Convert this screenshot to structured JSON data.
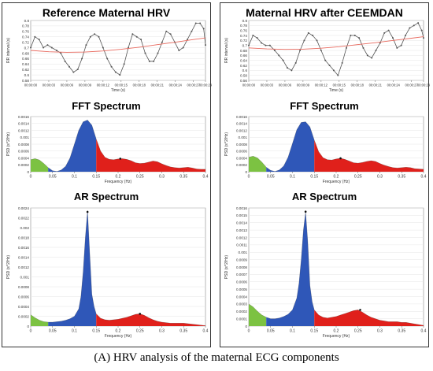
{
  "caption": "(A) HRV analysis of the maternal ECG components",
  "panels": [
    {
      "title": "Reference Maternal HRV",
      "fft_title": "FFT Spectrum",
      "ar_title": "AR Spectrum"
    },
    {
      "title": "Maternal HRV after CEEMDAN",
      "fft_title": "FFT Spectrum",
      "ar_title": "AR Spectrum"
    }
  ],
  "colors": {
    "vlf": "#7cc242",
    "lf": "#2f57b8",
    "hf": "#e0201b",
    "series": "#555555",
    "trend": "#e86a5f"
  },
  "chart_data": [
    {
      "type": "line",
      "panel": 0,
      "ylabel": "RR interval (s)",
      "xlabel": "Time (s)",
      "ylim": [
        0.58,
        0.8
      ],
      "xlim": [
        0,
        29
      ],
      "yticks": [
        "0.58",
        "0.6",
        "0.62",
        "0.64",
        "0.66",
        "0.68",
        "0.7",
        "0.72",
        "0.74",
        "0.76",
        "0.78",
        "0.8"
      ],
      "xticks": [
        "00:00:00",
        "00:00:03",
        "00:00:06",
        "00:00:09",
        "00:00:12",
        "00:00:15",
        "00:00:18",
        "00:00:21",
        "00:00:24",
        "00:00:27",
        "00:00:29"
      ],
      "xtick_pos": [
        0,
        3,
        6,
        9,
        12,
        15,
        18,
        21,
        24,
        27,
        29
      ],
      "series": [
        {
          "values": [
            [
              0,
              0.7
            ],
            [
              0.7,
              0.74
            ],
            [
              1.4,
              0.73
            ],
            [
              2.1,
              0.7
            ],
            [
              2.8,
              0.71
            ],
            [
              3.5,
              0.7
            ],
            [
              4.3,
              0.69
            ],
            [
              5,
              0.68
            ],
            [
              5.7,
              0.65
            ],
            [
              6.4,
              0.63
            ],
            [
              7.1,
              0.61
            ],
            [
              7.8,
              0.62
            ],
            [
              8.5,
              0.66
            ],
            [
              9.2,
              0.71
            ],
            [
              9.9,
              0.74
            ],
            [
              10.6,
              0.75
            ],
            [
              11.3,
              0.74
            ],
            [
              12,
              0.7
            ],
            [
              12.7,
              0.66
            ],
            [
              13.4,
              0.63
            ],
            [
              14.1,
              0.61
            ],
            [
              14.8,
              0.6
            ],
            [
              15.5,
              0.64
            ],
            [
              16.2,
              0.7
            ],
            [
              16.9,
              0.75
            ],
            [
              17.6,
              0.74
            ],
            [
              18.3,
              0.73
            ],
            [
              19,
              0.68
            ],
            [
              19.7,
              0.65
            ],
            [
              20.4,
              0.65
            ],
            [
              21.1,
              0.68
            ],
            [
              21.8,
              0.72
            ],
            [
              22.5,
              0.76
            ],
            [
              23.2,
              0.75
            ],
            [
              23.9,
              0.72
            ],
            [
              24.6,
              0.69
            ],
            [
              25.3,
              0.7
            ],
            [
              26,
              0.73
            ],
            [
              26.7,
              0.76
            ],
            [
              27.4,
              0.79
            ],
            [
              28.1,
              0.79
            ],
            [
              28.7,
              0.77
            ],
            [
              29,
              0.71
            ]
          ]
        }
      ],
      "trend": [
        [
          0,
          0.69
        ],
        [
          3,
          0.685
        ],
        [
          6,
          0.683
        ],
        [
          9,
          0.684
        ],
        [
          12,
          0.688
        ],
        [
          15,
          0.694
        ],
        [
          18,
          0.702
        ],
        [
          21,
          0.711
        ],
        [
          24,
          0.72
        ],
        [
          27,
          0.73
        ],
        [
          29,
          0.736
        ]
      ]
    },
    {
      "type": "area",
      "panel": 0,
      "title": "FFT Spectrum",
      "xlabel": "Frequency (Hz)",
      "ylabel": "PSD (s^2/Hz)",
      "xlim": [
        0,
        0.4
      ],
      "ylim": [
        0,
        0.0016
      ],
      "yticks": [
        "0",
        "0.0002",
        "0.0004",
        "0.0006",
        "0.0008",
        "0.001",
        "0.0012",
        "0.0014",
        "0.0016"
      ],
      "xticks": [
        "0",
        "0.05",
        "0.1",
        "0.15",
        "0.2",
        "0.25",
        "0.3",
        "0.35",
        "0.4"
      ],
      "bands": {
        "vlf": [
          0,
          0.04
        ],
        "lf": [
          0.04,
          0.15
        ],
        "hf": [
          0.15,
          0.4
        ]
      },
      "x": [
        0,
        0.01,
        0.02,
        0.03,
        0.04,
        0.05,
        0.06,
        0.07,
        0.08,
        0.09,
        0.1,
        0.11,
        0.12,
        0.13,
        0.14,
        0.15,
        0.16,
        0.17,
        0.18,
        0.19,
        0.2,
        0.21,
        0.22,
        0.23,
        0.24,
        0.25,
        0.26,
        0.27,
        0.28,
        0.29,
        0.3,
        0.31,
        0.32,
        0.33,
        0.34,
        0.35,
        0.36,
        0.37,
        0.38,
        0.39,
        0.4
      ],
      "y": [
        0.00035,
        0.00038,
        0.00034,
        0.00024,
        0.00012,
        3e-05,
        1e-05,
        5e-05,
        0.00016,
        0.0004,
        0.0008,
        0.0012,
        0.00145,
        0.0015,
        0.00135,
        0.00095,
        0.0006,
        0.00042,
        0.00036,
        0.00035,
        0.00037,
        0.00038,
        0.00036,
        0.00032,
        0.00026,
        0.00024,
        0.00025,
        0.00028,
        0.00031,
        0.00029,
        0.00023,
        0.00018,
        0.00014,
        0.00012,
        0.00011,
        0.00012,
        0.00013,
        0.00011,
        8e-05,
        7e-05,
        7e-05
      ],
      "marker": [
        0.205,
        0.00038
      ]
    },
    {
      "type": "area",
      "panel": 0,
      "title": "AR Spectrum",
      "xlabel": "Frequency (Hz)",
      "ylabel": "PSD (s^2/Hz)",
      "xlim": [
        0,
        0.4
      ],
      "ylim": [
        0,
        0.0024
      ],
      "yticks": [
        "0",
        "0.0002",
        "0.0004",
        "0.0006",
        "0.0008",
        "0.001",
        "0.0012",
        "0.0014",
        "0.0016",
        "0.0018",
        "0.002",
        "0.0022",
        "0.0024"
      ],
      "xticks": [
        "0",
        "0.05",
        "0.1",
        "0.15",
        "0.2",
        "0.25",
        "0.3",
        "0.35",
        "0.4"
      ],
      "bands": {
        "vlf": [
          0,
          0.04
        ],
        "lf": [
          0.04,
          0.15
        ],
        "hf": [
          0.15,
          0.4
        ]
      },
      "x": [
        0,
        0.01,
        0.02,
        0.03,
        0.04,
        0.05,
        0.06,
        0.07,
        0.08,
        0.09,
        0.1,
        0.11,
        0.115,
        0.12,
        0.125,
        0.13,
        0.135,
        0.14,
        0.145,
        0.15,
        0.16,
        0.17,
        0.18,
        0.19,
        0.2,
        0.21,
        0.22,
        0.23,
        0.24,
        0.25,
        0.26,
        0.27,
        0.28,
        0.29,
        0.3,
        0.31,
        0.32,
        0.33,
        0.34,
        0.35,
        0.36,
        0.37,
        0.38,
        0.39,
        0.4
      ],
      "y": [
        0.00023,
        0.00017,
        0.00012,
        9e-05,
        8e-05,
        8e-05,
        9e-05,
        0.0001,
        0.00012,
        0.00015,
        0.0002,
        0.00035,
        0.0006,
        0.0011,
        0.0018,
        0.00235,
        0.0015,
        0.00065,
        0.0004,
        0.00025,
        0.00016,
        0.00013,
        0.00012,
        0.00013,
        0.00014,
        0.00016,
        0.00018,
        0.00021,
        0.00024,
        0.00025,
        0.00022,
        0.00017,
        0.00013,
        0.0001,
        8e-05,
        7e-05,
        6e-05,
        6e-05,
        6e-05,
        6e-05,
        5e-05,
        4e-05,
        3e-05,
        2e-05,
        1e-05
      ],
      "marker": [
        0.25,
        0.00025
      ],
      "peak_marker": [
        0.13,
        0.00232
      ]
    },
    {
      "type": "line",
      "panel": 1,
      "ylabel": "RR interval (s)",
      "xlabel": "Time (s)",
      "ylim": [
        0.56,
        0.8
      ],
      "xlim": [
        0,
        29
      ],
      "yticks": [
        "0.56",
        "0.58",
        "0.6",
        "0.62",
        "0.64",
        "0.66",
        "0.68",
        "0.7",
        "0.72",
        "0.74",
        "0.76",
        "0.78",
        "0.8"
      ],
      "xticks": [
        "00:00:00",
        "00:00:03",
        "00:00:06",
        "00:00:09",
        "00:00:12",
        "00:00:15",
        "00:00:18",
        "00:00:21",
        "00:00:24",
        "00:00:27",
        "00:00:29"
      ],
      "xtick_pos": [
        0,
        3,
        6,
        9,
        12,
        15,
        18,
        21,
        24,
        27,
        29
      ],
      "series": [
        {
          "values": [
            [
              0,
              0.7
            ],
            [
              0.7,
              0.74
            ],
            [
              1.4,
              0.73
            ],
            [
              2.1,
              0.71
            ],
            [
              2.8,
              0.7
            ],
            [
              3.5,
              0.7
            ],
            [
              4.3,
              0.68
            ],
            [
              5,
              0.66
            ],
            [
              5.7,
              0.64
            ],
            [
              6.4,
              0.61
            ],
            [
              7.1,
              0.6
            ],
            [
              7.8,
              0.63
            ],
            [
              8.5,
              0.68
            ],
            [
              9.2,
              0.72
            ],
            [
              9.9,
              0.75
            ],
            [
              10.6,
              0.74
            ],
            [
              11.3,
              0.72
            ],
            [
              12,
              0.68
            ],
            [
              12.7,
              0.64
            ],
            [
              13.4,
              0.62
            ],
            [
              14.1,
              0.6
            ],
            [
              14.8,
              0.58
            ],
            [
              15.5,
              0.63
            ],
            [
              16.2,
              0.69
            ],
            [
              16.9,
              0.74
            ],
            [
              17.6,
              0.74
            ],
            [
              18.3,
              0.73
            ],
            [
              19,
              0.69
            ],
            [
              19.7,
              0.66
            ],
            [
              20.4,
              0.65
            ],
            [
              21.1,
              0.68
            ],
            [
              21.8,
              0.71
            ],
            [
              22.5,
              0.75
            ],
            [
              23.2,
              0.76
            ],
            [
              23.9,
              0.73
            ],
            [
              24.6,
              0.69
            ],
            [
              25.3,
              0.7
            ],
            [
              26,
              0.74
            ],
            [
              26.7,
              0.77
            ],
            [
              27.4,
              0.78
            ],
            [
              28.1,
              0.79
            ],
            [
              28.7,
              0.76
            ],
            [
              29,
              0.73
            ]
          ]
        }
      ],
      "trend": [
        [
          0,
          0.69
        ],
        [
          3,
          0.686
        ],
        [
          6,
          0.684
        ],
        [
          9,
          0.685
        ],
        [
          12,
          0.689
        ],
        [
          15,
          0.695
        ],
        [
          18,
          0.703
        ],
        [
          21,
          0.711
        ],
        [
          24,
          0.72
        ],
        [
          27,
          0.729
        ],
        [
          29,
          0.735
        ]
      ]
    },
    {
      "type": "area",
      "panel": 1,
      "title": "FFT Spectrum",
      "xlabel": "Frequency (Hz)",
      "ylabel": "PSD (s^2/Hz)",
      "xlim": [
        0,
        0.4
      ],
      "ylim": [
        0,
        0.0016
      ],
      "yticks": [
        "0",
        "0.0002",
        "0.0004",
        "0.0006",
        "0.0008",
        "0.001",
        "0.0012",
        "0.0014",
        "0.0016"
      ],
      "xticks": [
        "0",
        "0.05",
        "0.1",
        "0.15",
        "0.2",
        "0.25",
        "0.3",
        "0.35",
        "0.4"
      ],
      "bands": {
        "vlf": [
          0,
          0.04
        ],
        "lf": [
          0.04,
          0.15
        ],
        "hf": [
          0.15,
          0.4
        ]
      },
      "x": [
        0,
        0.01,
        0.02,
        0.03,
        0.04,
        0.05,
        0.06,
        0.07,
        0.08,
        0.09,
        0.1,
        0.11,
        0.12,
        0.13,
        0.14,
        0.15,
        0.16,
        0.17,
        0.18,
        0.19,
        0.2,
        0.21,
        0.22,
        0.23,
        0.24,
        0.25,
        0.26,
        0.27,
        0.28,
        0.29,
        0.3,
        0.31,
        0.32,
        0.33,
        0.34,
        0.35,
        0.36,
        0.37,
        0.38,
        0.39,
        0.4
      ],
      "y": [
        0.00042,
        0.00045,
        0.0004,
        0.00028,
        0.00013,
        4e-05,
        1e-05,
        5e-05,
        0.00017,
        0.00042,
        0.00082,
        0.00122,
        0.00143,
        0.00145,
        0.0013,
        0.00092,
        0.00058,
        0.00041,
        0.00035,
        0.00034,
        0.00037,
        0.00039,
        0.00036,
        0.00031,
        0.00026,
        0.00025,
        0.00027,
        0.0003,
        0.00032,
        0.0003,
        0.00024,
        0.00019,
        0.00015,
        0.00012,
        0.00011,
        0.00012,
        0.00013,
        0.00012,
        9e-05,
        8e-05,
        7e-05
      ],
      "marker": [
        0.21,
        0.00039
      ]
    },
    {
      "type": "area",
      "panel": 1,
      "title": "AR Spectrum",
      "xlabel": "Frequency (Hz)",
      "ylabel": "PSD (s^2/Hz)",
      "xlim": [
        0,
        0.4
      ],
      "ylim": [
        0,
        0.0016
      ],
      "yticks": [
        "0",
        "0.0001",
        "0.0002",
        "0.0003",
        "0.0004",
        "0.0005",
        "0.0006",
        "0.0007",
        "0.0008",
        "0.0009",
        "0.001",
        "0.0011",
        "0.0012",
        "0.0013",
        "0.0014",
        "0.0015",
        "0.0016"
      ],
      "xticks": [
        "0",
        "0.05",
        "0.1",
        "0.15",
        "0.2",
        "0.25",
        "0.3",
        "0.35",
        "0.4"
      ],
      "bands": {
        "vlf": [
          0,
          0.04
        ],
        "lf": [
          0.04,
          0.15
        ],
        "hf": [
          0.15,
          0.4
        ]
      },
      "x": [
        0,
        0.01,
        0.02,
        0.03,
        0.04,
        0.05,
        0.06,
        0.07,
        0.08,
        0.09,
        0.1,
        0.11,
        0.115,
        0.12,
        0.125,
        0.13,
        0.135,
        0.14,
        0.145,
        0.15,
        0.16,
        0.17,
        0.18,
        0.19,
        0.2,
        0.21,
        0.22,
        0.23,
        0.24,
        0.25,
        0.26,
        0.27,
        0.28,
        0.29,
        0.3,
        0.31,
        0.32,
        0.33,
        0.34,
        0.35,
        0.36,
        0.37,
        0.38,
        0.39,
        0.4
      ],
      "y": [
        0.0003,
        0.00026,
        0.0002,
        0.00015,
        0.00012,
        0.0001,
        0.0001,
        0.00011,
        0.00013,
        0.00016,
        0.00022,
        0.00038,
        0.00058,
        0.0009,
        0.0013,
        0.00155,
        0.00115,
        0.00055,
        0.00033,
        0.00022,
        0.00015,
        0.00012,
        0.00011,
        0.00012,
        0.00013,
        0.00015,
        0.00017,
        0.00019,
        0.00021,
        0.00022,
        0.00019,
        0.00015,
        0.00012,
        0.0001,
        8e-05,
        7e-05,
        6e-05,
        6e-05,
        6e-05,
        5e-05,
        5e-05,
        4e-05,
        3e-05,
        2e-05,
        1e-05
      ],
      "marker": [
        0.255,
        0.00022
      ],
      "peak_marker": [
        0.13,
        0.00155
      ]
    }
  ]
}
